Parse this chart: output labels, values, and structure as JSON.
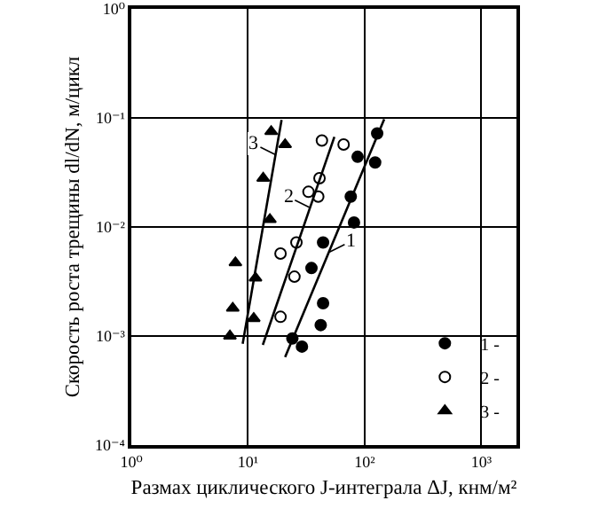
{
  "chart_data": {
    "type": "scatter",
    "xlabel": "Размах циклического J-интеграла ΔJ, кнм/м²",
    "ylabel": "Скорость роста трещины dl/dN, м/цикл",
    "log": "xy",
    "grid": true,
    "legend": "bottom right",
    "xlim": [
      1,
      2000
    ],
    "xticks": [
      {
        "value": 1,
        "label": "10⁰"
      },
      {
        "value": 10,
        "label": "10¹"
      },
      {
        "value": 100,
        "label": "10²"
      },
      {
        "value": 1000,
        "label": "10³"
      }
    ],
    "ylim": [
      0.0001,
      1
    ],
    "yticks": [
      {
        "value": 0.0001,
        "label": "10⁻⁴"
      },
      {
        "value": 0.001,
        "label": "10⁻³"
      },
      {
        "value": 0.01,
        "label": "10⁻²"
      },
      {
        "value": 0.1,
        "label": "10⁻¹"
      },
      {
        "value": 1,
        "label": "10⁰"
      }
    ],
    "series": [
      {
        "name": "1 -",
        "color": "#000000",
        "marker": "circle",
        "x": [
          128,
          87,
          123,
          76,
          81,
          44,
          35,
          44,
          42,
          24,
          29
        ],
        "values": [
          0.072,
          0.044,
          0.039,
          0.019,
          0.011,
          0.0072,
          0.0042,
          0.002,
          0.00126,
          0.00095,
          0.0008
        ]
      },
      {
        "name": "2 -",
        "color": "#000000",
        "marker": "circle-open",
        "x": [
          43,
          66,
          41,
          33,
          40,
          26,
          19,
          25,
          19
        ],
        "values": [
          0.062,
          0.057,
          0.028,
          0.021,
          0.019,
          0.0072,
          0.0057,
          0.0035,
          0.0015
        ]
      },
      {
        "name": "3 -",
        "color": "#000000",
        "marker": "triangle",
        "x": [
          15.8,
          20.8,
          13.5,
          15.4,
          7.8,
          11.6,
          7.4,
          11.2,
          7.0
        ],
        "values": [
          0.075,
          0.057,
          0.028,
          0.0117,
          0.0047,
          0.0034,
          0.0018,
          0.00145,
          0.001
        ]
      },
      {
        "type": "line",
        "color": "#000000",
        "marker": "none",
        "x": [
          20.8,
          147
        ],
        "values": [
          0.00064,
          0.097
        ]
      },
      {
        "type": "line",
        "color": "#000000",
        "marker": "none",
        "x": [
          13.4,
          55
        ],
        "values": [
          0.00083,
          0.067
        ]
      },
      {
        "type": "line",
        "color": "#000000",
        "marker": "none",
        "x": [
          9.0,
          19.4
        ],
        "values": [
          0.00085,
          0.096
        ]
      }
    ],
    "annotations": [
      {
        "text": "1",
        "x": 50,
        "y": 0.0059
      },
      {
        "text": "2",
        "x": 34,
        "y": 0.015
      },
      {
        "text": "3",
        "x": 17.2,
        "y": 0.046
      }
    ]
  }
}
